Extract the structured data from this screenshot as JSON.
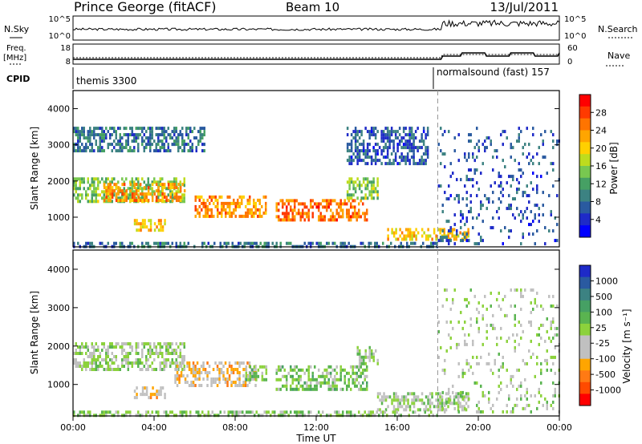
{
  "header": {
    "station": "Prince George (fitACF)",
    "beam": "Beam 10",
    "date": "13/Jul/2011"
  },
  "top_panels": {
    "nsky_label": "N.Sky",
    "nsky_ticks": [
      "10^5",
      "10^0"
    ],
    "nsearch_label": "N.Search",
    "nsearch_ticks": [
      "10^5",
      "10^0"
    ],
    "freq_label_1": "Freq.",
    "freq_label_2": "[MHz]",
    "freq_ticks": [
      "18",
      "8"
    ],
    "nave_label": "Nave",
    "nave_ticks": [
      "60",
      "0"
    ],
    "cpid_label": "CPID",
    "cpid_1": "themis 3300",
    "cpid_2": "normalsound (fast) 157"
  },
  "colorbars": {
    "power": {
      "label": "Power [dB]",
      "ticks": [
        "28",
        "24",
        "20",
        "16",
        "12",
        "8",
        "4"
      ],
      "colors": [
        "#ff0000",
        "#ff3a00",
        "#ff7400",
        "#ffa500",
        "#ffd000",
        "#bedc1e",
        "#78c850",
        "#46a064",
        "#3c8282",
        "#2a5aa0",
        "#1e2ac8",
        "#0000ff"
      ]
    },
    "velocity": {
      "label": "Velocity [m s⁻¹]",
      "ticks": [
        "1000",
        "500",
        "100",
        "25",
        "-25",
        "-100",
        "-500",
        "-1000"
      ],
      "colors": [
        "#1e2ac8",
        "#2a5aa0",
        "#3c8282",
        "#46a064",
        "#5ab450",
        "#8cd23c",
        "#c0c0c0",
        "#c0c0c0",
        "#ffa500",
        "#ff7a14",
        "#ff4a00",
        "#ff0000"
      ]
    }
  },
  "chart_data": [
    {
      "type": "heatmap",
      "title": "Power",
      "ylabel": "Slant Range [km]",
      "xlabel": "Time UT",
      "x_ticks": [
        "00:00",
        "04:00",
        "08:00",
        "12:00",
        "16:00",
        "20:00",
        "00:00"
      ],
      "y_ticks": [
        "1000",
        "2000",
        "3000",
        "4000"
      ],
      "xlim_hours": [
        0,
        24
      ],
      "ylim_km": [
        180,
        4500
      ],
      "clim": [
        0,
        30
      ],
      "mode_change_hour": 18,
      "regions": [
        {
          "t": [
            0.0,
            5.5
          ],
          "r": [
            1400,
            2100
          ],
          "v": 14
        },
        {
          "t": [
            1.5,
            5.5
          ],
          "r": [
            1500,
            1950
          ],
          "v": 22
        },
        {
          "t": [
            3.0,
            4.5
          ],
          "r": [
            650,
            950
          ],
          "v": 20
        },
        {
          "t": [
            0.0,
            6.5
          ],
          "r": [
            2800,
            3500
          ],
          "v": 8
        },
        {
          "t": [
            6.0,
            9.5
          ],
          "r": [
            1000,
            1600
          ],
          "v": 22
        },
        {
          "t": [
            10.0,
            14.5
          ],
          "r": [
            900,
            1500
          ],
          "v": 24
        },
        {
          "t": [
            13.5,
            15.0
          ],
          "r": [
            1500,
            2100
          ],
          "v": 14
        },
        {
          "t": [
            13.5,
            17.5
          ],
          "r": [
            2500,
            3500
          ],
          "v": 6
        },
        {
          "t": [
            15.5,
            19.5
          ],
          "r": [
            350,
            700
          ],
          "v": 20
        },
        {
          "t": [
            18.0,
            24.0
          ],
          "r": [
            250,
            3500
          ],
          "v": 6
        },
        {
          "t": [
            0.0,
            18.0
          ],
          "r": [
            200,
            320
          ],
          "v": 8
        }
      ]
    },
    {
      "type": "heatmap",
      "title": "Velocity",
      "ylabel": "Slant Range [km]",
      "xlabel": "Time UT",
      "x_ticks": [
        "00:00",
        "04:00",
        "08:00",
        "12:00",
        "16:00",
        "20:00",
        "00:00"
      ],
      "y_ticks": [
        "1000",
        "2000",
        "3000",
        "4000"
      ],
      "xlim_hours": [
        0,
        24
      ],
      "ylim_km": [
        180,
        4500
      ],
      "clim": [
        -1000,
        1000
      ],
      "mode_change_hour": 18,
      "regions": [
        {
          "t": [
            0.0,
            5.5
          ],
          "r": [
            1400,
            2100
          ],
          "v": 0
        },
        {
          "t": [
            3.0,
            4.5
          ],
          "r": [
            650,
            950
          ],
          "v": -300
        },
        {
          "t": [
            5.0,
            9.0
          ],
          "r": [
            1000,
            1600
          ],
          "v": -300
        },
        {
          "t": [
            8.5,
            9.5
          ],
          "r": [
            1100,
            1500
          ],
          "v": 150
        },
        {
          "t": [
            10.0,
            14.5
          ],
          "r": [
            850,
            1500
          ],
          "v": 150
        },
        {
          "t": [
            14.0,
            15.0
          ],
          "r": [
            1500,
            2000
          ],
          "v": 80
        },
        {
          "t": [
            15.0,
            19.5
          ],
          "r": [
            300,
            800
          ],
          "v": 0
        },
        {
          "t": [
            18.0,
            24.0
          ],
          "r": [
            250,
            3500
          ],
          "v": 0
        },
        {
          "t": [
            0.0,
            18.0
          ],
          "r": [
            200,
            320
          ],
          "v": 60
        }
      ]
    }
  ]
}
